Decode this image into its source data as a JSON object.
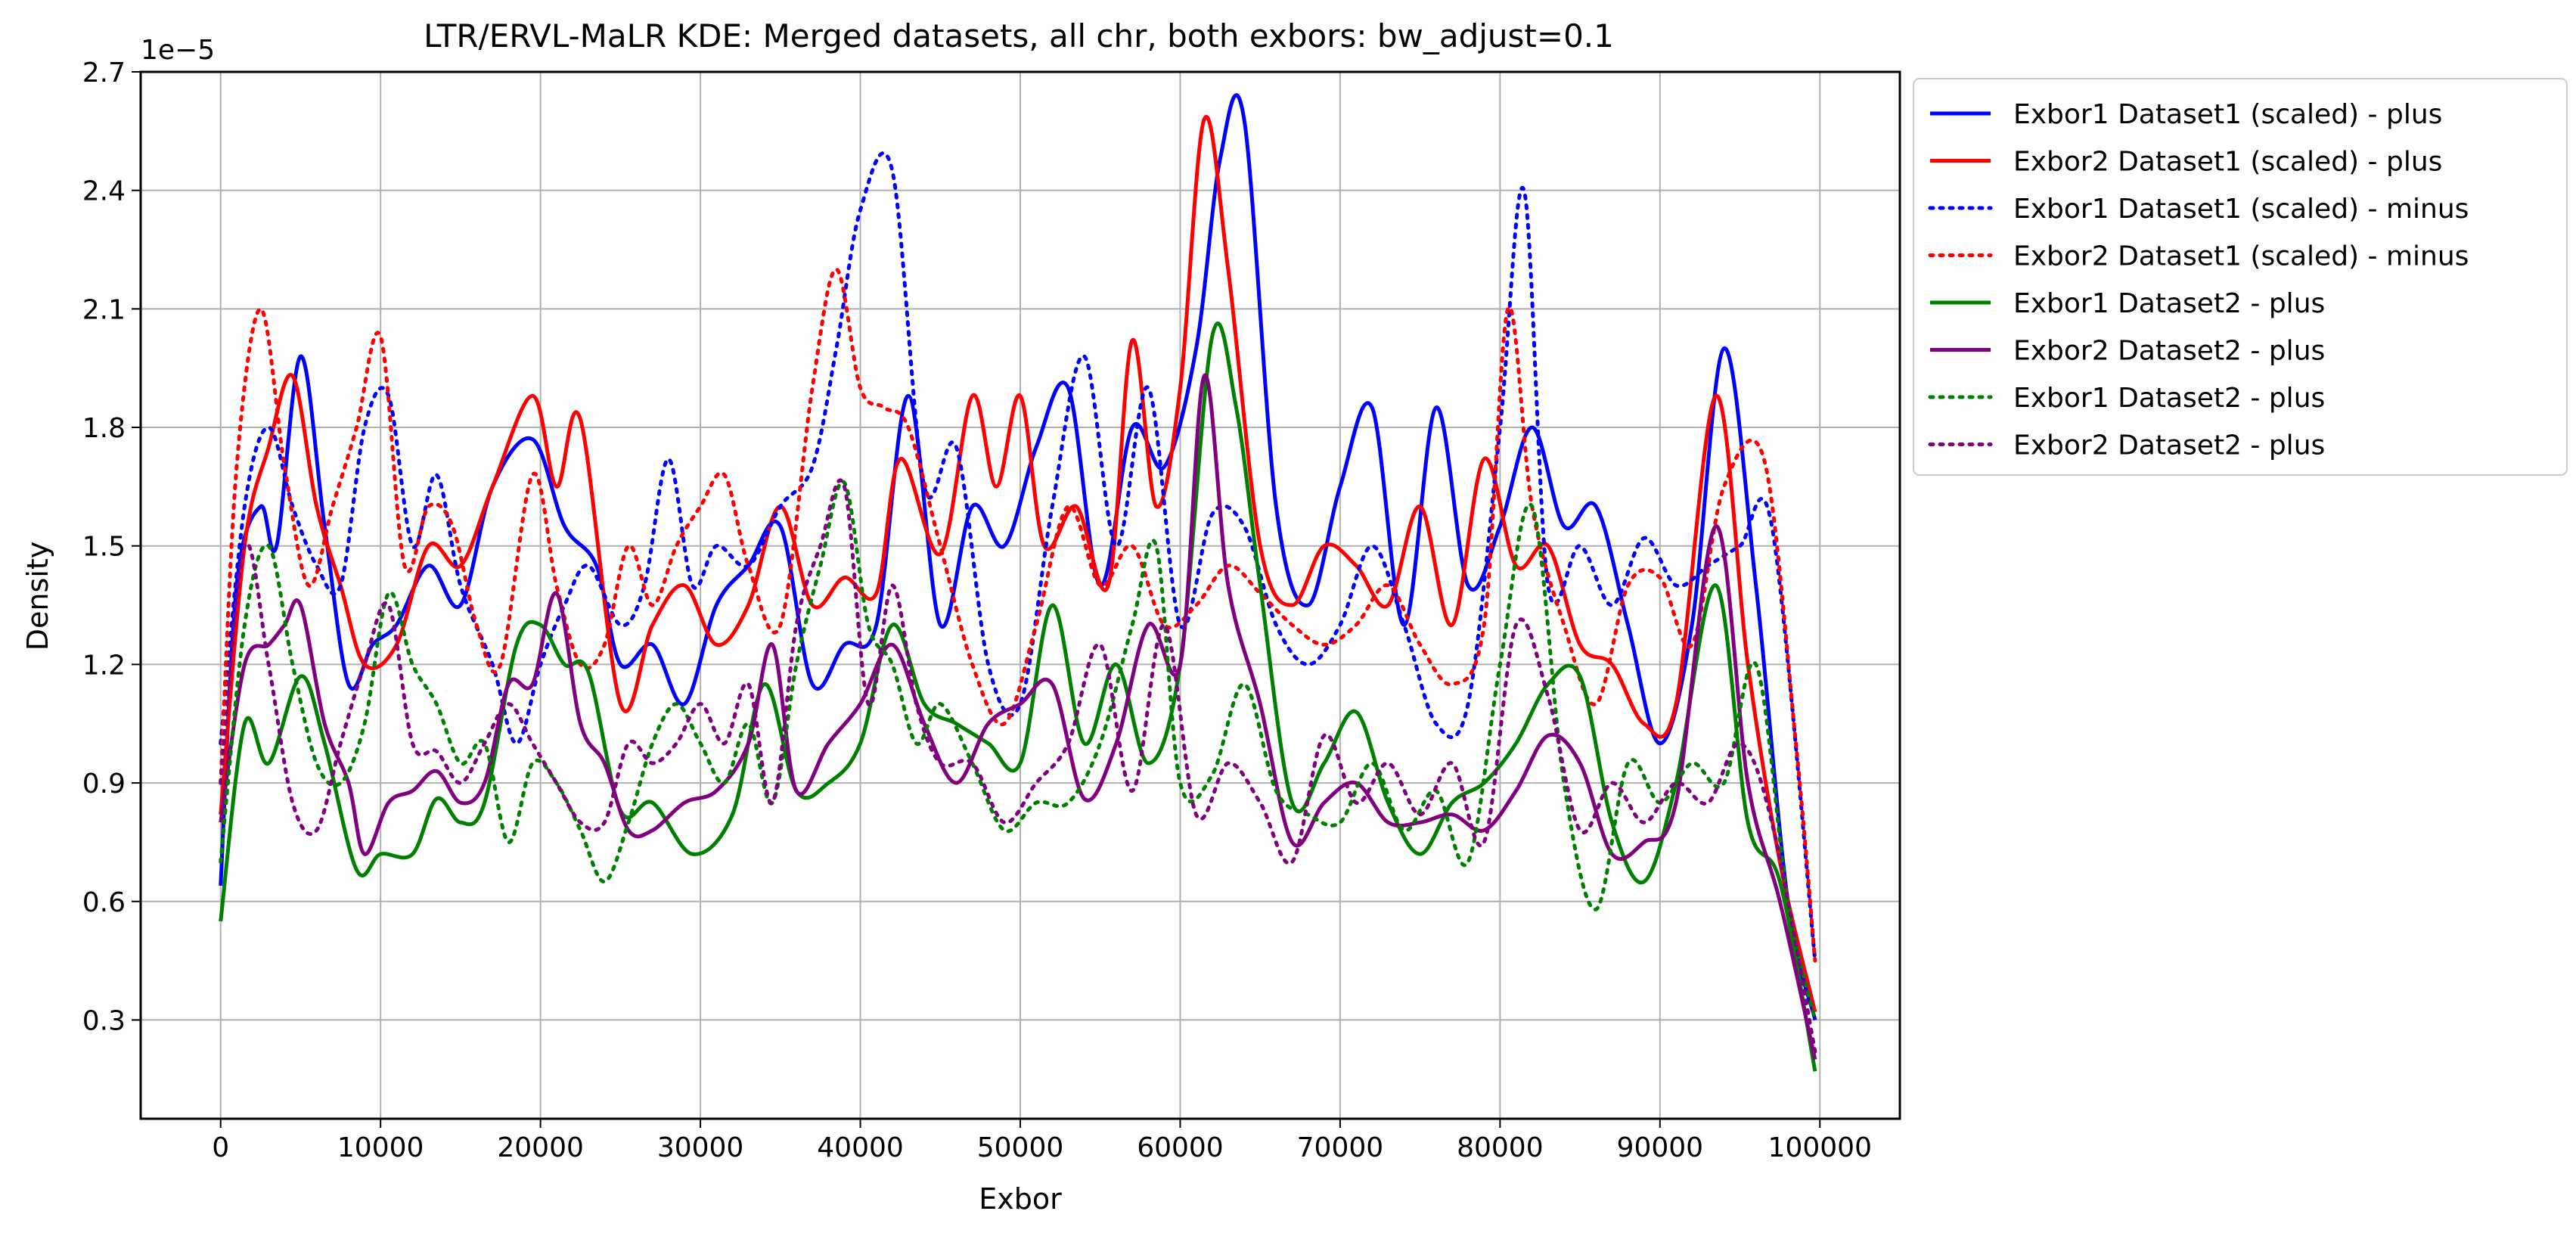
{
  "chart_data": {
    "type": "line",
    "title": "LTR/ERVL-MaLR KDE: Merged datasets, all chr, both exbors: bw_adjust=0.1",
    "xlabel": "Exbor",
    "ylabel": "Density",
    "y_offset_text": "1e−5",
    "xlim": [
      -5000,
      105000
    ],
    "ylim": [
      0.05,
      2.7
    ],
    "x_ticks": [
      0,
      10000,
      20000,
      30000,
      40000,
      50000,
      60000,
      70000,
      80000,
      90000,
      100000
    ],
    "x_tick_labels": [
      "0",
      "10000",
      "20000",
      "30000",
      "40000",
      "50000",
      "60000",
      "70000",
      "80000",
      "90000",
      "100000"
    ],
    "y_ticks": [
      0.3,
      0.6,
      0.9,
      1.2,
      1.5,
      1.8,
      2.1,
      2.4,
      2.7
    ],
    "y_tick_labels": [
      "0.3",
      "0.6",
      "0.9",
      "1.2",
      "1.5",
      "1.8",
      "2.1",
      "2.4",
      "2.7"
    ],
    "grid": true,
    "legend_position": "outside-right-top",
    "series": [
      {
        "name": "Exbor1 Dataset1 (scaled) - plus",
        "color": "#0000ff",
        "style": "solid",
        "x": [
          0,
          1000,
          2500,
          3500,
          5000,
          6500,
          8000,
          9500,
          11000,
          13000,
          15000,
          17000,
          19500,
          21500,
          23500,
          25000,
          27000,
          29000,
          31000,
          33000,
          35000,
          37000,
          39000,
          41000,
          43000,
          45000,
          47000,
          49000,
          51000,
          53000,
          55000,
          57000,
          59000,
          61000,
          62500,
          64000,
          66000,
          68000,
          70000,
          72000,
          74000,
          76000,
          78000,
          80000,
          82000,
          84000,
          86000,
          88000,
          90000,
          92000,
          94000,
          96000,
          98000,
          99700
        ],
        "y": [
          0.64,
          1.4,
          1.6,
          1.5,
          1.98,
          1.55,
          1.15,
          1.25,
          1.3,
          1.45,
          1.35,
          1.65,
          1.77,
          1.55,
          1.45,
          1.2,
          1.25,
          1.1,
          1.35,
          1.45,
          1.55,
          1.15,
          1.25,
          1.3,
          1.88,
          1.3,
          1.6,
          1.5,
          1.75,
          1.9,
          1.4,
          1.8,
          1.7,
          2.0,
          2.48,
          2.58,
          1.6,
          1.35,
          1.65,
          1.85,
          1.3,
          1.85,
          1.4,
          1.55,
          1.8,
          1.55,
          1.6,
          1.3,
          1.0,
          1.3,
          2.0,
          1.4,
          0.6,
          0.3
        ]
      },
      {
        "name": "Exbor2 Dataset1 (scaled) - plus",
        "color": "#ff0000",
        "style": "solid",
        "x": [
          0,
          1500,
          3000,
          4500,
          6000,
          7500,
          9000,
          11000,
          13000,
          15000,
          17000,
          19500,
          21000,
          22500,
          25000,
          27000,
          29000,
          31000,
          33000,
          35000,
          37000,
          39000,
          41000,
          42500,
          45000,
          47000,
          48500,
          50000,
          51500,
          53500,
          55500,
          57000,
          58500,
          60000,
          61500,
          63000,
          65000,
          67000,
          69000,
          71000,
          73000,
          75000,
          77000,
          79000,
          81000,
          83000,
          85000,
          87000,
          89000,
          91000,
          93500,
          95500,
          97500,
          99700
        ],
        "y": [
          0.82,
          1.5,
          1.75,
          1.93,
          1.6,
          1.4,
          1.2,
          1.25,
          1.5,
          1.45,
          1.65,
          1.88,
          1.65,
          1.82,
          1.1,
          1.3,
          1.4,
          1.25,
          1.35,
          1.6,
          1.35,
          1.42,
          1.38,
          1.72,
          1.48,
          1.88,
          1.65,
          1.88,
          1.5,
          1.6,
          1.4,
          2.02,
          1.6,
          1.9,
          2.58,
          2.2,
          1.5,
          1.35,
          1.5,
          1.45,
          1.35,
          1.6,
          1.3,
          1.72,
          1.45,
          1.5,
          1.25,
          1.2,
          1.05,
          1.1,
          1.88,
          1.2,
          0.7,
          0.32
        ]
      },
      {
        "name": "Exbor1 Dataset1 (scaled) - minus",
        "color": "#0000ff",
        "style": "dotted",
        "x": [
          0,
          1500,
          3000,
          4500,
          6000,
          7500,
          9000,
          10500,
          12000,
          13500,
          15000,
          17000,
          18500,
          20000,
          21500,
          23000,
          25000,
          26500,
          28000,
          29500,
          31000,
          33000,
          35000,
          37000,
          38500,
          40000,
          42000,
          44000,
          46000,
          48000,
          50000,
          52000,
          54000,
          56000,
          58000,
          60000,
          62000,
          64000,
          66000,
          68000,
          70000,
          72000,
          74000,
          76000,
          78000,
          80000,
          81500,
          83000,
          85000,
          87000,
          89000,
          91000,
          93000,
          95000,
          97000,
          99700
        ],
        "y": [
          1.0,
          1.6,
          1.8,
          1.6,
          1.45,
          1.4,
          1.8,
          1.88,
          1.5,
          1.68,
          1.4,
          1.2,
          1.0,
          1.2,
          1.35,
          1.45,
          1.3,
          1.4,
          1.72,
          1.4,
          1.5,
          1.45,
          1.6,
          1.7,
          2.0,
          2.35,
          2.45,
          1.65,
          1.75,
          1.2,
          1.1,
          1.6,
          1.98,
          1.5,
          1.9,
          1.3,
          1.58,
          1.55,
          1.3,
          1.2,
          1.3,
          1.5,
          1.3,
          1.05,
          1.1,
          1.8,
          2.4,
          1.4,
          1.5,
          1.35,
          1.52,
          1.4,
          1.45,
          1.5,
          1.55,
          0.45
        ]
      },
      {
        "name": "Exbor2 Dataset1 (scaled) - minus",
        "color": "#ff0000",
        "style": "dotted",
        "x": [
          0,
          1000,
          2500,
          4000,
          5500,
          7000,
          8500,
          10000,
          11500,
          13000,
          14500,
          16000,
          17500,
          19500,
          21000,
          22500,
          24000,
          25500,
          27000,
          28500,
          30000,
          31500,
          33000,
          35000,
          37000,
          38500,
          40000,
          41500,
          43000,
          45000,
          47000,
          49000,
          51000,
          53000,
          55000,
          57000,
          59000,
          61000,
          63000,
          65000,
          67000,
          69000,
          71000,
          73000,
          75000,
          77000,
          79000,
          80500,
          82000,
          84000,
          86000,
          88000,
          90000,
          92000,
          94000,
          96500,
          98500,
          99700
        ],
        "y": [
          0.9,
          1.7,
          2.1,
          1.7,
          1.4,
          1.6,
          1.8,
          2.03,
          1.45,
          1.6,
          1.55,
          1.3,
          1.2,
          1.68,
          1.4,
          1.2,
          1.25,
          1.5,
          1.35,
          1.5,
          1.6,
          1.68,
          1.45,
          1.3,
          1.9,
          2.2,
          1.9,
          1.85,
          1.8,
          1.5,
          1.2,
          1.05,
          1.3,
          1.6,
          1.4,
          1.5,
          1.3,
          1.35,
          1.45,
          1.38,
          1.3,
          1.25,
          1.3,
          1.4,
          1.25,
          1.15,
          1.3,
          2.1,
          1.6,
          1.3,
          1.1,
          1.4,
          1.42,
          1.25,
          1.65,
          1.72,
          1.0,
          0.45
        ]
      },
      {
        "name": "Exbor1 Dataset2 - plus",
        "color": "#008000",
        "style": "solid",
        "x": [
          0,
          1500,
          3000,
          5000,
          6500,
          8500,
          10000,
          12000,
          13500,
          15000,
          16500,
          18500,
          20000,
          21500,
          23000,
          25000,
          27000,
          29500,
          32000,
          34000,
          36000,
          38000,
          40000,
          42000,
          44000,
          46000,
          48000,
          50000,
          52000,
          54000,
          56000,
          58000,
          60000,
          62000,
          63500,
          65000,
          67000,
          69000,
          71000,
          73000,
          75000,
          77000,
          79000,
          81000,
          83000,
          85000,
          87000,
          89000,
          91000,
          93500,
          95500,
          97500,
          99700
        ],
        "y": [
          0.55,
          1.05,
          0.95,
          1.17,
          1.0,
          0.68,
          0.72,
          0.72,
          0.86,
          0.8,
          0.85,
          1.25,
          1.3,
          1.2,
          1.18,
          0.83,
          0.85,
          0.72,
          0.82,
          1.15,
          0.88,
          0.9,
          1.0,
          1.3,
          1.1,
          1.05,
          1.0,
          0.95,
          1.35,
          1.0,
          1.2,
          0.95,
          1.2,
          2.03,
          1.85,
          1.4,
          0.85,
          0.95,
          1.08,
          0.85,
          0.72,
          0.85,
          0.9,
          1.0,
          1.15,
          1.17,
          0.8,
          0.65,
          0.9,
          1.4,
          0.8,
          0.65,
          0.17
        ]
      },
      {
        "name": "Exbor2 Dataset2 - plus",
        "color": "#800080",
        "style": "solid",
        "x": [
          0,
          1500,
          3000,
          4000,
          5000,
          6500,
          8000,
          9000,
          10500,
          12000,
          13500,
          15000,
          16500,
          18000,
          19500,
          21000,
          22500,
          24000,
          25500,
          27000,
          29000,
          31000,
          33000,
          34500,
          36000,
          38000,
          40000,
          42000,
          44000,
          46000,
          48000,
          50000,
          52000,
          54000,
          56000,
          58000,
          60000,
          61500,
          63000,
          65000,
          67000,
          69000,
          71000,
          73000,
          75000,
          77000,
          79000,
          81000,
          83000,
          85000,
          87000,
          89000,
          91000,
          93500,
          95500,
          97500,
          99700
        ],
        "y": [
          0.8,
          1.2,
          1.25,
          1.3,
          1.35,
          1.05,
          0.9,
          0.72,
          0.85,
          0.88,
          0.93,
          0.85,
          0.9,
          1.15,
          1.15,
          1.38,
          1.05,
          0.95,
          0.78,
          0.78,
          0.85,
          0.88,
          1.0,
          1.25,
          0.88,
          1.0,
          1.1,
          1.25,
          1.05,
          0.9,
          1.05,
          1.1,
          1.15,
          0.86,
          1.0,
          1.3,
          1.2,
          1.93,
          1.4,
          1.1,
          0.75,
          0.85,
          0.9,
          0.8,
          0.8,
          0.82,
          0.78,
          0.88,
          1.02,
          0.95,
          0.72,
          0.75,
          0.85,
          1.55,
          0.9,
          0.6,
          0.2
        ]
      },
      {
        "name": "Exbor1 Dataset2 - plus",
        "color": "#008000",
        "style": "dotted",
        "x": [
          0,
          1500,
          3000,
          4500,
          6000,
          7500,
          9000,
          10500,
          12000,
          13500,
          15000,
          16500,
          18000,
          19500,
          21000,
          22500,
          24000,
          25500,
          27000,
          28500,
          30000,
          31500,
          33000,
          34500,
          36000,
          37500,
          39000,
          40500,
          42000,
          43500,
          45000,
          47000,
          49000,
          51000,
          53000,
          55000,
          57000,
          58500,
          60000,
          62000,
          64000,
          66000,
          68000,
          70000,
          72000,
          74000,
          76000,
          78000,
          80000,
          82000,
          84000,
          86000,
          88000,
          90000,
          92000,
          94000,
          96000,
          98000,
          99700
        ],
        "y": [
          0.7,
          1.3,
          1.5,
          1.2,
          0.95,
          0.9,
          1.05,
          1.38,
          1.2,
          1.1,
          0.95,
          1.0,
          0.75,
          0.95,
          0.9,
          0.78,
          0.65,
          0.8,
          1.0,
          1.1,
          1.0,
          0.9,
          1.05,
          0.85,
          1.2,
          1.45,
          1.66,
          1.3,
          1.2,
          1.0,
          1.1,
          0.95,
          0.78,
          0.85,
          0.85,
          1.0,
          1.3,
          1.5,
          0.9,
          0.92,
          1.15,
          0.88,
          0.82,
          0.8,
          0.95,
          0.78,
          0.88,
          0.7,
          1.2,
          1.6,
          0.9,
          0.58,
          0.95,
          0.85,
          0.95,
          0.9,
          1.2,
          0.6,
          0.3
        ]
      },
      {
        "name": "Exbor2 Dataset2 - plus",
        "color": "#800080",
        "style": "dotted",
        "x": [
          0,
          1500,
          3000,
          4500,
          6000,
          7500,
          9000,
          10500,
          12000,
          13500,
          15000,
          16500,
          18000,
          19500,
          21000,
          22500,
          24000,
          25500,
          27000,
          28500,
          30000,
          31500,
          33000,
          34500,
          36000,
          37500,
          39000,
          40500,
          42000,
          43500,
          45000,
          47000,
          49000,
          51000,
          53000,
          55000,
          57000,
          59000,
          61000,
          63000,
          65000,
          67000,
          69000,
          71000,
          73000,
          75000,
          77000,
          79000,
          81000,
          83000,
          85000,
          87000,
          89000,
          91000,
          93000,
          95000,
          97000,
          99700
        ],
        "y": [
          0.9,
          1.5,
          1.2,
          0.85,
          0.78,
          1.0,
          1.2,
          1.35,
          1.0,
          0.98,
          0.9,
          1.0,
          1.1,
          1.0,
          0.9,
          0.8,
          0.8,
          1.0,
          0.95,
          1.0,
          1.1,
          1.0,
          1.15,
          0.85,
          1.3,
          1.5,
          1.65,
          1.1,
          1.4,
          1.1,
          0.95,
          0.95,
          0.8,
          0.9,
          1.0,
          1.25,
          0.88,
          1.3,
          0.82,
          0.95,
          0.85,
          0.7,
          1.02,
          0.85,
          0.95,
          0.82,
          0.95,
          0.75,
          1.3,
          1.12,
          0.78,
          0.9,
          0.8,
          0.9,
          0.85,
          1.0,
          0.8,
          0.22
        ]
      }
    ]
  }
}
